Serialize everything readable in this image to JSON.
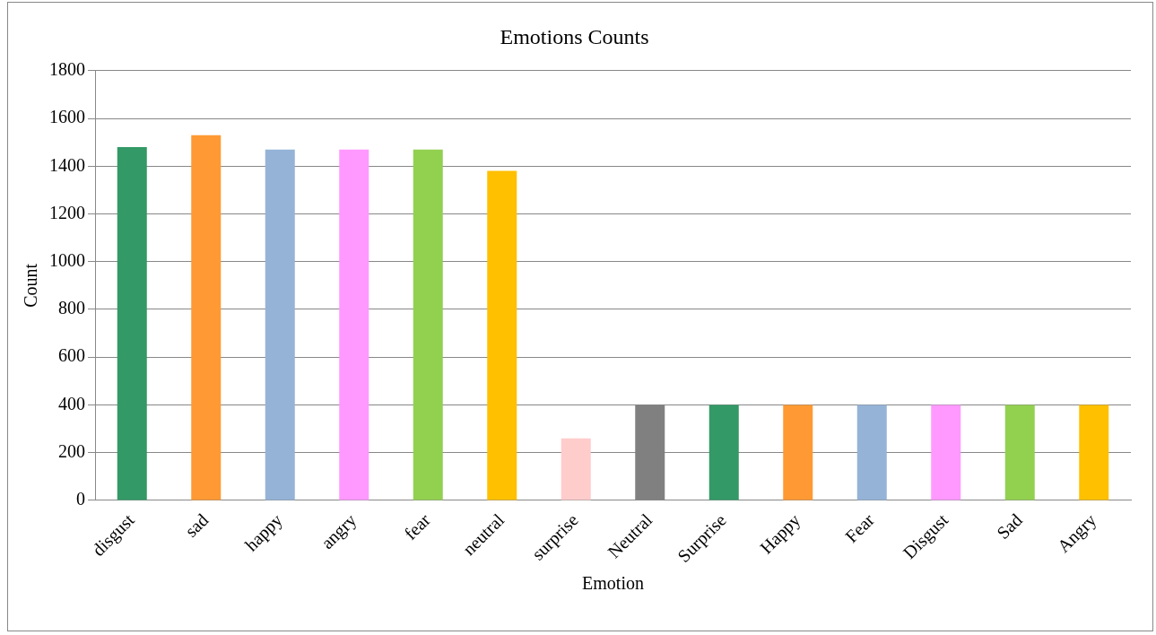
{
  "chart_data": {
    "type": "bar",
    "title": "Emotions Counts",
    "xlabel": "Emotion",
    "ylabel": "Count",
    "categories": [
      "disgust",
      "sad",
      "happy",
      "angry",
      "fear",
      "neutral",
      "surprise",
      "Neutral",
      "Surprise",
      "Happy",
      "Fear",
      "Disgust",
      "Sad",
      "Angry"
    ],
    "values": [
      1480,
      1530,
      1470,
      1470,
      1470,
      1380,
      260,
      400,
      400,
      400,
      400,
      400,
      400,
      400
    ],
    "colors": [
      "#339966",
      "#ff9933",
      "#95b3d7",
      "#ff99ff",
      "#92d050",
      "#ffc000",
      "#ffcccc",
      "#808080",
      "#339966",
      "#ff9933",
      "#95b3d7",
      "#ff99ff",
      "#92d050",
      "#ffc000"
    ],
    "ylim": [
      0,
      1800
    ],
    "yticks": [
      0,
      200,
      400,
      600,
      800,
      1000,
      1200,
      1400,
      1600,
      1800
    ],
    "grid": "y",
    "legend": false
  }
}
